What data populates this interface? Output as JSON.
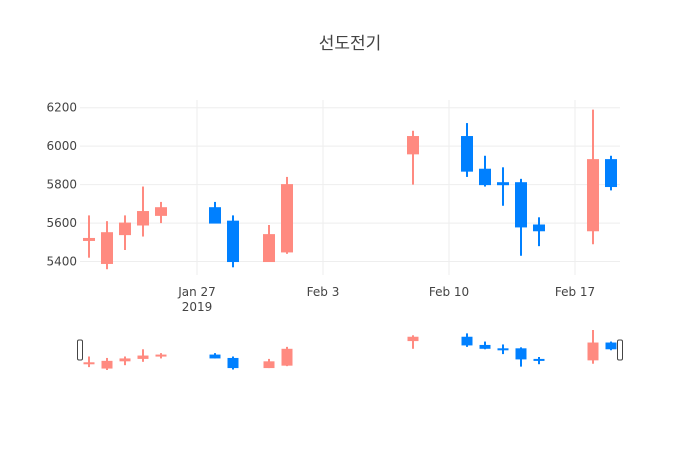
{
  "chart_data": {
    "type": "candlestick",
    "title": "선도전기",
    "xlabel": "",
    "ylabel": "",
    "x_range": [
      "2019-01-21",
      "2019-02-19"
    ],
    "ylim": [
      5330,
      6240
    ],
    "y_ticks": [
      5400,
      5600,
      5800,
      6000,
      6200
    ],
    "x_ticks": [
      {
        "date": "2019-01-27",
        "label": "Jan 27",
        "sublabel": "2019"
      },
      {
        "date": "2019-02-03",
        "label": "Feb 3",
        "sublabel": ""
      },
      {
        "date": "2019-02-10",
        "label": "Feb 10",
        "sublabel": ""
      },
      {
        "date": "2019-02-17",
        "label": "Feb 17",
        "sublabel": ""
      }
    ],
    "grid": true,
    "legend": "none",
    "rangeslider": true,
    "increasing_color": "#ff8a80",
    "decreasing_color": "#0080ff",
    "candles": [
      {
        "date": "2019-01-21",
        "open": 5510,
        "high": 5640,
        "low": 5420,
        "close": 5520
      },
      {
        "date": "2019-01-22",
        "open": 5390,
        "high": 5610,
        "low": 5360,
        "close": 5550
      },
      {
        "date": "2019-01-23",
        "open": 5540,
        "high": 5640,
        "low": 5460,
        "close": 5600
      },
      {
        "date": "2019-01-24",
        "open": 5590,
        "high": 5790,
        "low": 5530,
        "close": 5660
      },
      {
        "date": "2019-01-25",
        "open": 5640,
        "high": 5710,
        "low": 5600,
        "close": 5680
      },
      {
        "date": "2019-01-28",
        "open": 5680,
        "high": 5710,
        "low": 5600,
        "close": 5600
      },
      {
        "date": "2019-01-29",
        "open": 5610,
        "high": 5640,
        "low": 5370,
        "close": 5400
      },
      {
        "date": "2019-01-31",
        "open": 5400,
        "high": 5590,
        "low": 5400,
        "close": 5540
      },
      {
        "date": "2019-02-01",
        "open": 5450,
        "high": 5840,
        "low": 5440,
        "close": 5800
      },
      {
        "date": "2019-02-08",
        "open": 5960,
        "high": 6080,
        "low": 5800,
        "close": 6050
      },
      {
        "date": "2019-02-11",
        "open": 6050,
        "high": 6120,
        "low": 5840,
        "close": 5870
      },
      {
        "date": "2019-02-12",
        "open": 5880,
        "high": 5950,
        "low": 5790,
        "close": 5800
      },
      {
        "date": "2019-02-13",
        "open": 5810,
        "high": 5890,
        "low": 5690,
        "close": 5800
      },
      {
        "date": "2019-02-14",
        "open": 5810,
        "high": 5830,
        "low": 5430,
        "close": 5580
      },
      {
        "date": "2019-02-15",
        "open": 5590,
        "high": 5630,
        "low": 5480,
        "close": 5560
      },
      {
        "date": "2019-02-18",
        "open": 5560,
        "high": 6190,
        "low": 5490,
        "close": 5930
      },
      {
        "date": "2019-02-19",
        "open": 5930,
        "high": 5950,
        "low": 5770,
        "close": 5790
      }
    ]
  }
}
